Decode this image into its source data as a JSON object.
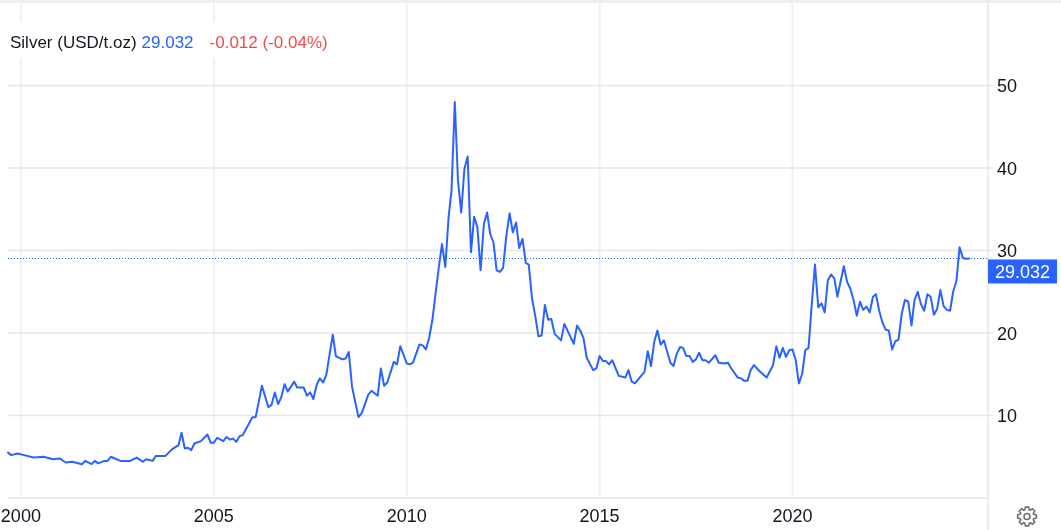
{
  "chart_data": {
    "type": "line",
    "title": "Silver (USD/t.oz)",
    "annotations": [
      "29.032",
      "-0.012 (-0.04%)"
    ],
    "x": [
      "1999-09",
      "1999-10",
      "1999-12",
      "2000-02",
      "2000-05",
      "2000-08",
      "2000-11",
      "2001-01",
      "2001-03",
      "2001-05",
      "2001-08",
      "2001-09",
      "2001-11",
      "2001-12",
      "2002-01",
      "2002-03",
      "2002-04",
      "2002-05",
      "2002-08",
      "2002-11",
      "2003-01",
      "2003-03",
      "2003-04",
      "2003-06",
      "2003-07",
      "2003-10",
      "2003-12",
      "2004-02",
      "2004-03",
      "2004-04",
      "2004-05",
      "2004-06",
      "2004-07",
      "2004-09",
      "2004-11",
      "2004-12",
      "2005-01",
      "2005-02",
      "2005-04",
      "2005-05",
      "2005-06",
      "2005-07",
      "2005-08",
      "2005-09",
      "2005-10",
      "2006-01",
      "2006-02",
      "2006-04",
      "2006-06",
      "2006-07",
      "2006-08",
      "2006-09",
      "2006-10",
      "2006-11",
      "2006-12",
      "2007-02",
      "2007-03",
      "2007-05",
      "2007-06",
      "2007-07",
      "2007-08",
      "2007-09",
      "2007-10",
      "2007-11",
      "2007-12",
      "2008-02",
      "2008-03",
      "2008-05",
      "2008-06",
      "2008-07",
      "2008-08",
      "2008-09",
      "2008-10",
      "2008-11",
      "2009-01",
      "2009-02",
      "2009-04",
      "2009-05",
      "2009-06",
      "2009-07",
      "2009-09",
      "2009-10",
      "2009-11",
      "2010-01",
      "2010-02",
      "2010-03",
      "2010-05",
      "2010-06",
      "2010-07",
      "2010-08",
      "2010-09",
      "2010-10",
      "2010-11",
      "2010-12",
      "2011-01",
      "2011-02",
      "2011-03",
      "2011-04",
      "2011-05",
      "2011-06",
      "2011-07",
      "2011-08",
      "2011-09",
      "2011-10",
      "2011-11",
      "2011-12",
      "2012-01",
      "2012-02",
      "2012-03",
      "2012-04",
      "2012-05",
      "2012-06",
      "2012-07",
      "2012-08",
      "2012-09",
      "2012-10",
      "2012-11",
      "2012-12",
      "2013-01",
      "2013-02",
      "2013-03",
      "2013-04",
      "2013-05",
      "2013-06",
      "2013-07",
      "2013-08",
      "2013-09",
      "2013-10",
      "2013-11",
      "2014-01",
      "2014-02",
      "2014-04",
      "2014-05",
      "2014-06",
      "2014-07",
      "2014-08",
      "2014-09",
      "2014-11",
      "2014-12",
      "2015-01",
      "2015-02",
      "2015-03",
      "2015-04",
      "2015-05",
      "2015-07",
      "2015-09",
      "2015-10",
      "2015-11",
      "2015-12",
      "2016-03",
      "2016-04",
      "2016-05",
      "2016-06",
      "2016-07",
      "2016-08",
      "2016-09",
      "2016-11",
      "2016-12",
      "2017-01",
      "2017-02",
      "2017-03",
      "2017-04",
      "2017-05",
      "2017-06",
      "2017-07",
      "2017-08",
      "2017-09",
      "2017-10",
      "2017-11",
      "2018-01",
      "2018-02",
      "2018-04",
      "2018-05",
      "2018-06",
      "2018-08",
      "2018-09",
      "2018-10",
      "2018-11",
      "2018-12",
      "2019-01",
      "2019-03",
      "2019-05",
      "2019-07",
      "2019-08",
      "2019-09",
      "2019-10",
      "2019-11",
      "2019-12",
      "2020-01",
      "2020-02",
      "2020-03",
      "2020-04",
      "2020-05",
      "2020-06",
      "2020-07",
      "2020-08",
      "2020-09",
      "2020-10",
      "2020-11",
      "2020-12",
      "2021-01",
      "2021-02",
      "2021-03",
      "2021-05",
      "2021-06",
      "2021-07",
      "2021-08",
      "2021-09",
      "2021-10",
      "2021-11",
      "2021-12",
      "2022-01",
      "2022-02",
      "2022-03",
      "2022-04",
      "2022-05",
      "2022-06",
      "2022-07",
      "2022-08",
      "2022-09",
      "2022-10",
      "2022-11",
      "2022-12",
      "2023-01",
      "2023-02",
      "2023-03",
      "2023-04",
      "2023-05",
      "2023-06",
      "2023-07",
      "2023-08",
      "2023-09",
      "2023-10",
      "2023-11",
      "2023-12",
      "2024-01",
      "2024-02",
      "2024-03",
      "2024-04",
      "2024-05",
      "2024-06",
      "2024-07",
      "2024-08"
    ],
    "series": [
      {
        "color": "#2962ff",
        "values": [
          5.5,
          5.2,
          5.4,
          5.2,
          4.9,
          5.0,
          4.7,
          4.8,
          4.3,
          4.4,
          4.1,
          4.5,
          4.1,
          4.5,
          4.2,
          4.5,
          4.5,
          5.0,
          4.5,
          4.5,
          4.9,
          4.4,
          4.7,
          4.5,
          5.1,
          5.1,
          5.9,
          6.4,
          7.9,
          6.0,
          6.1,
          5.8,
          6.6,
          6.9,
          7.7,
          6.7,
          6.7,
          7.3,
          6.9,
          7.4,
          7.1,
          7.2,
          6.8,
          7.5,
          7.6,
          9.8,
          9.8,
          13.6,
          11.0,
          11.3,
          12.8,
          11.4,
          12.2,
          13.8,
          12.9,
          14.1,
          13.4,
          13.4,
          12.4,
          12.8,
          12.0,
          13.7,
          14.5,
          14.0,
          14.9,
          19.8,
          17.2,
          16.8,
          16.9,
          17.7,
          13.5,
          11.6,
          9.8,
          10.3,
          12.5,
          13.0,
          12.4,
          15.7,
          13.6,
          14.0,
          16.5,
          16.2,
          18.4,
          16.3,
          16.2,
          16.4,
          18.6,
          18.5,
          18.0,
          19.4,
          21.6,
          24.8,
          28.0,
          30.8,
          28.0,
          34.0,
          37.3,
          48.0,
          38.5,
          34.6,
          39.9,
          41.4,
          29.8,
          34.1,
          32.8,
          27.6,
          33.2,
          34.6,
          32.0,
          31.0,
          27.6,
          27.4,
          27.9,
          31.8,
          34.5,
          32.2,
          33.4,
          30.3,
          31.4,
          28.5,
          28.3,
          24.2,
          22.1,
          19.6,
          19.7,
          23.4,
          21.6,
          21.7,
          19.9,
          19.1,
          21.1,
          19.5,
          18.7,
          20.9,
          20.3,
          19.4,
          17.0,
          15.5,
          15.7,
          17.2,
          16.6,
          16.6,
          16.2,
          16.7,
          14.8,
          14.6,
          15.5,
          14.1,
          13.9,
          15.3,
          17.8,
          16.0,
          18.9,
          20.3,
          18.6,
          19.1,
          16.4,
          16.0,
          17.5,
          18.3,
          18.2,
          17.2,
          17.2,
          16.5,
          16.8,
          17.6,
          16.7,
          16.7,
          16.4,
          17.3,
          16.4,
          16.3,
          16.4,
          15.7,
          14.6,
          14.5,
          14.2,
          14.2,
          15.5,
          16.1,
          15.3,
          14.6,
          16.1,
          18.4,
          17.0,
          18.2,
          17.1,
          17.9,
          18.0,
          16.7,
          13.9,
          15.0,
          17.9,
          18.2,
          23.4,
          28.3,
          23.1,
          23.6,
          22.5,
          26.4,
          27.1,
          26.6,
          24.4,
          28.1,
          26.2,
          25.4,
          24.0,
          22.1,
          23.8,
          22.8,
          23.2,
          22.5,
          24.4,
          24.7,
          22.7,
          21.3,
          20.4,
          20.3,
          18.0,
          19.0,
          19.2,
          22.4,
          24.0,
          23.8,
          20.9,
          24.0,
          25.0,
          23.5,
          22.7,
          24.7,
          24.4,
          22.2,
          22.9,
          25.2,
          23.3,
          22.8,
          22.7,
          25.0,
          26.3,
          30.4,
          29.1,
          29.0,
          29.032
        ]
      }
    ],
    "xlim": [
      "1999-09-01",
      "2025-01-25"
    ],
    "xticks": [
      "2000",
      "2005",
      "2010",
      "2015",
      "2020"
    ],
    "ylim": [
      0,
      60
    ],
    "yticks": [
      10,
      20,
      30,
      40,
      50
    ],
    "grid": true,
    "ref_lines": [
      {
        "axis": "y",
        "value": 29.032,
        "label": "29.032",
        "color": "#2962ff",
        "line_style": "dotted"
      }
    ]
  }
}
